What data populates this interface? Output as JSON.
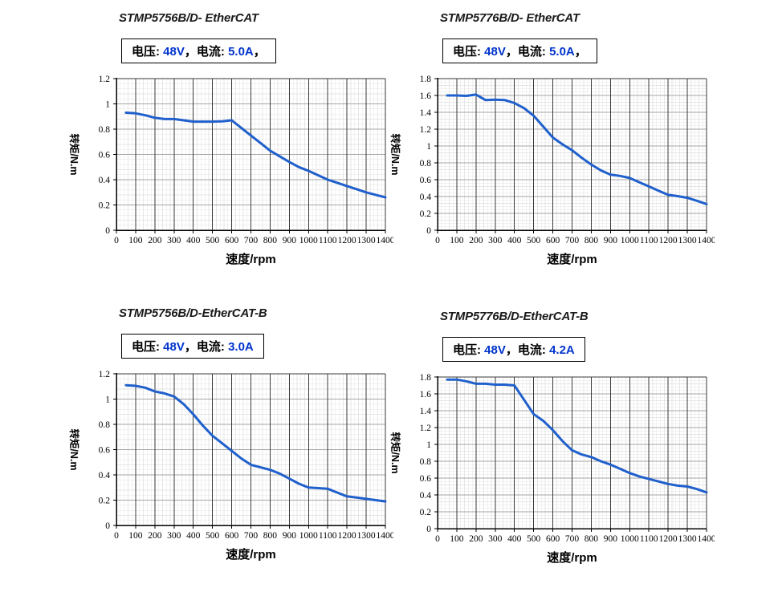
{
  "colors": {
    "curve": "#2060cc",
    "value_blue": "#0033cc",
    "black_text": "#000000",
    "axis": "#000000",
    "border_dark": "#3a3a3a",
    "major_vertical": "#3a3a3a",
    "major_horizontal": "#a6a6a6",
    "minor_grid": "#e6e6e6"
  },
  "chart_data": [
    {
      "type": "line",
      "title": "STMP5756B/D- EtherCAT",
      "box_segments": [
        {
          "text": "电压: ",
          "blue": false
        },
        {
          "text": "48V",
          "blue": true
        },
        {
          "text": "，",
          "blue": false
        },
        {
          "text": "电流: ",
          "blue": false
        },
        {
          "text": "5.0A",
          "blue": true
        },
        {
          "text": "，",
          "blue": false
        }
      ],
      "xlabel": "速度/rpm",
      "ylabel": "转矩/N.m",
      "xlim": [
        0,
        1400
      ],
      "ylim": [
        0,
        1.2
      ],
      "xticks": [
        0,
        100,
        200,
        300,
        400,
        500,
        600,
        700,
        800,
        900,
        1000,
        1100,
        1200,
        1300,
        1400
      ],
      "xtick_labels": [
        "0",
        "100",
        "200",
        "300",
        "400",
        "500",
        "600",
        "700",
        "800",
        "900",
        "1000",
        "1100",
        "1200",
        "1300",
        "1400"
      ],
      "yticks": [
        0,
        0.2,
        0.4,
        0.6,
        0.8,
        1,
        1.2
      ],
      "ytick_labels": [
        "0",
        "0.2",
        "0.4",
        "0.6",
        "0.8",
        "1",
        "1.2"
      ],
      "minor_x": 20,
      "minor_y": 0.04,
      "grid": true,
      "x": [
        50,
        100,
        150,
        200,
        250,
        300,
        350,
        400,
        450,
        500,
        550,
        600,
        650,
        700,
        750,
        800,
        850,
        900,
        950,
        1000,
        1050,
        1100,
        1150,
        1200,
        1250,
        1300,
        1350,
        1400
      ],
      "y": [
        0.93,
        0.925,
        0.91,
        0.89,
        0.88,
        0.88,
        0.87,
        0.86,
        0.86,
        0.86,
        0.862,
        0.87,
        0.81,
        0.75,
        0.69,
        0.63,
        0.585,
        0.54,
        0.5,
        0.47,
        0.435,
        0.4,
        0.375,
        0.35,
        0.325,
        0.3,
        0.28,
        0.26
      ]
    },
    {
      "type": "line",
      "title": "STMP5776B/D- EtherCAT",
      "box_segments": [
        {
          "text": "电压: ",
          "blue": false
        },
        {
          "text": "48V",
          "blue": true
        },
        {
          "text": "，",
          "blue": false
        },
        {
          "text": "电流: ",
          "blue": false
        },
        {
          "text": "5.0A",
          "blue": true
        },
        {
          "text": "，",
          "blue": false
        }
      ],
      "xlabel": "速度/rpm",
      "ylabel": "转矩/N.m",
      "xlim": [
        0,
        1400
      ],
      "ylim": [
        0,
        1.8
      ],
      "xticks": [
        0,
        100,
        200,
        300,
        400,
        500,
        600,
        700,
        800,
        900,
        1000,
        1100,
        1200,
        1300,
        1400
      ],
      "xtick_labels": [
        "0",
        "100",
        "200",
        "300",
        "400",
        "500",
        "600",
        "700",
        "800",
        "900",
        "1000",
        "1100",
        "1200",
        "1300",
        "1400"
      ],
      "yticks": [
        0,
        0.2,
        0.4,
        0.6,
        0.8,
        1,
        1.2,
        1.4,
        1.6,
        1.8
      ],
      "ytick_labels": [
        "0",
        "0.2",
        "0.4",
        "0.6",
        "0.8",
        "1",
        "1.2",
        "1.4",
        "1.6",
        "1.8"
      ],
      "minor_x": 20,
      "minor_y": 0.04,
      "grid": true,
      "x": [
        50,
        100,
        150,
        200,
        250,
        300,
        350,
        400,
        450,
        500,
        550,
        600,
        650,
        700,
        750,
        800,
        850,
        900,
        950,
        1000,
        1050,
        1100,
        1150,
        1200,
        1250,
        1300,
        1350,
        1400
      ],
      "y": [
        1.6,
        1.6,
        1.595,
        1.61,
        1.545,
        1.55,
        1.545,
        1.51,
        1.45,
        1.36,
        1.23,
        1.1,
        1.02,
        0.95,
        0.86,
        0.78,
        0.71,
        0.66,
        0.645,
        0.62,
        0.57,
        0.52,
        0.47,
        0.42,
        0.405,
        0.385,
        0.35,
        0.31
      ]
    },
    {
      "type": "line",
      "title": "STMP5756B/D-EtherCAT-B",
      "box_segments": [
        {
          "text": "电压: ",
          "blue": false
        },
        {
          "text": "48V",
          "blue": true
        },
        {
          "text": "，",
          "blue": false
        },
        {
          "text": "电流: ",
          "blue": false
        },
        {
          "text": "3.0A",
          "blue": true
        }
      ],
      "xlabel": "速度/rpm",
      "ylabel": "转矩/N.m",
      "xlim": [
        0,
        1400
      ],
      "ylim": [
        0,
        1.2
      ],
      "xticks": [
        0,
        100,
        200,
        300,
        400,
        500,
        600,
        700,
        800,
        900,
        1000,
        1100,
        1200,
        1300,
        1400
      ],
      "xtick_labels": [
        "0",
        "100",
        "200",
        "300",
        "400",
        "500",
        "600",
        "700",
        "800",
        "900",
        "1000",
        "1100",
        "1200",
        "1300",
        "1400"
      ],
      "yticks": [
        0,
        0.2,
        0.4,
        0.6,
        0.8,
        1,
        1.2
      ],
      "ytick_labels": [
        "0",
        "0.2",
        "0.4",
        "0.6",
        "0.8",
        "1",
        "1.2"
      ],
      "minor_x": 20,
      "minor_y": 0.04,
      "grid": true,
      "x": [
        50,
        100,
        150,
        200,
        250,
        300,
        350,
        400,
        450,
        500,
        550,
        600,
        650,
        700,
        750,
        800,
        850,
        900,
        950,
        1000,
        1050,
        1100,
        1150,
        1200,
        1250,
        1300,
        1350,
        1400
      ],
      "y": [
        1.11,
        1.105,
        1.09,
        1.06,
        1.045,
        1.02,
        0.96,
        0.88,
        0.79,
        0.71,
        0.65,
        0.59,
        0.53,
        0.48,
        0.46,
        0.44,
        0.41,
        0.37,
        0.33,
        0.3,
        0.295,
        0.29,
        0.26,
        0.23,
        0.22,
        0.21,
        0.2,
        0.19
      ]
    },
    {
      "type": "line",
      "title": "STMP5776B/D-EtherCAT-B",
      "box_segments": [
        {
          "text": "电压: ",
          "blue": false
        },
        {
          "text": "48V",
          "blue": true
        },
        {
          "text": "，",
          "blue": false
        },
        {
          "text": "电流: ",
          "blue": false
        },
        {
          "text": "4.2A",
          "blue": true
        }
      ],
      "xlabel": "速度/rpm",
      "ylabel": "转矩/N.m",
      "xlim": [
        0,
        1400
      ],
      "ylim": [
        0,
        1.8
      ],
      "xticks": [
        0,
        100,
        200,
        300,
        400,
        500,
        600,
        700,
        800,
        900,
        1000,
        1100,
        1200,
        1300,
        1400
      ],
      "xtick_labels": [
        "0",
        "100",
        "200",
        "300",
        "400",
        "500",
        "600",
        "700",
        "800",
        "900",
        "1000",
        "1100",
        "1200",
        "1300",
        "1400"
      ],
      "yticks": [
        0,
        0.2,
        0.4,
        0.6,
        0.8,
        1,
        1.2,
        1.4,
        1.6,
        1.8
      ],
      "ytick_labels": [
        "0",
        "0.2",
        "0.4",
        "0.6",
        "0.8",
        "1",
        "1.2",
        "1.4",
        "1.6",
        "1.8"
      ],
      "minor_x": 20,
      "minor_y": 0.04,
      "grid": true,
      "x": [
        50,
        100,
        150,
        200,
        250,
        300,
        350,
        400,
        450,
        500,
        550,
        600,
        650,
        700,
        750,
        800,
        850,
        900,
        950,
        1000,
        1050,
        1100,
        1150,
        1200,
        1250,
        1300,
        1350,
        1400
      ],
      "y": [
        1.77,
        1.77,
        1.75,
        1.72,
        1.72,
        1.71,
        1.71,
        1.7,
        1.53,
        1.36,
        1.28,
        1.17,
        1.04,
        0.93,
        0.88,
        0.85,
        0.8,
        0.76,
        0.71,
        0.66,
        0.62,
        0.59,
        0.56,
        0.53,
        0.51,
        0.5,
        0.47,
        0.43
      ]
    }
  ]
}
